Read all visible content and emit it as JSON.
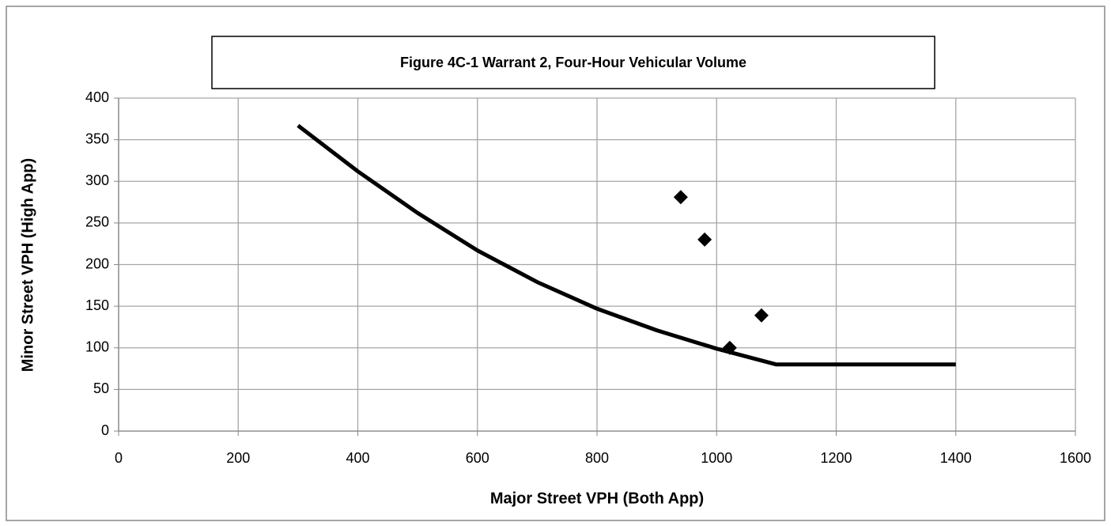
{
  "chart_data": {
    "type": "line",
    "title": "Figure 4C-1 Warrant 2, Four-Hour Vehicular Volume",
    "x_label": "Major Street VPH (Both App)",
    "y_label": "Minor Street VPH (High App)",
    "xlim": [
      0,
      1600
    ],
    "xticks": [
      0,
      200,
      400,
      600,
      800,
      1000,
      1200,
      1400,
      1600
    ],
    "ylim": [
      0,
      400
    ],
    "yticks": [
      0,
      50,
      100,
      150,
      200,
      250,
      300,
      350,
      400
    ],
    "grid": true,
    "series": [
      {
        "style": "line",
        "color": "#000000",
        "x": [
          300,
          400,
          500,
          600,
          700,
          800,
          900,
          1000,
          1100,
          1400
        ],
        "values": [
          367,
          312,
          262,
          217,
          179,
          147,
          121,
          99,
          80,
          80
        ]
      },
      {
        "style": "marker",
        "color": "#000000",
        "x": [
          940,
          980,
          1022,
          1075
        ],
        "values": [
          281,
          230,
          100,
          139
        ]
      }
    ]
  }
}
